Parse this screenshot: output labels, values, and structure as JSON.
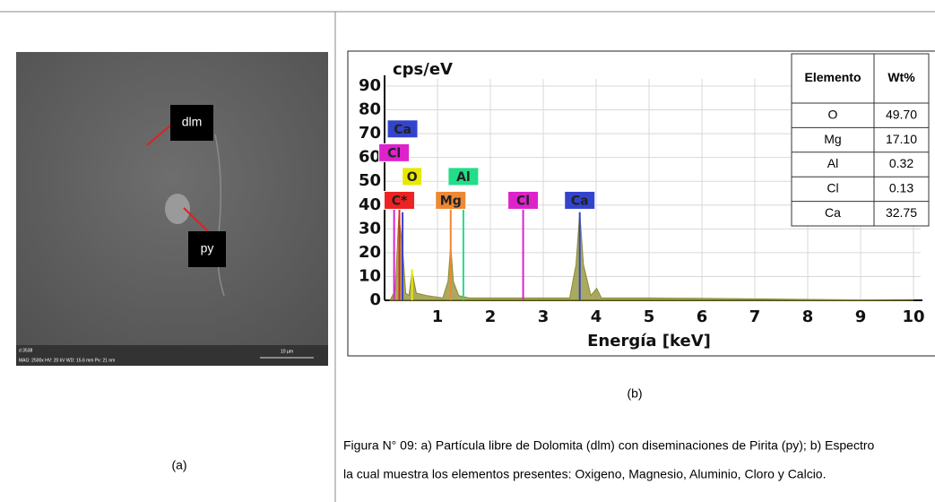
{
  "sem_image": {
    "labels": [
      "dlm",
      "py"
    ],
    "footer": [
      "d 3538",
      "MAG: 2500x  HV: 20 kV  WD: 15.6 mm  Px: 21 nm"
    ],
    "scale": "10 µm"
  },
  "caption_a": "(a)",
  "spectrum": {
    "type": "area",
    "y_label": "cps/eV",
    "x_label": "Energía [keV]",
    "xlim": [
      0,
      10
    ],
    "ylim": [
      0,
      90
    ],
    "xticks": [
      1,
      2,
      3,
      4,
      5,
      6,
      7,
      8,
      9,
      10
    ],
    "yticks": [
      0,
      10,
      20,
      30,
      40,
      50,
      60,
      70,
      80,
      90
    ],
    "grid": true,
    "color": "#8c8c2c",
    "x": [
      0.1,
      0.2,
      0.27,
      0.34,
      0.4,
      0.46,
      0.52,
      0.6,
      0.8,
      1.1,
      1.2,
      1.25,
      1.3,
      1.4,
      1.6,
      2.5,
      3.5,
      3.62,
      3.69,
      3.76,
      3.9,
      4.01,
      4.1,
      5,
      10
    ],
    "values": [
      0,
      4,
      36,
      22,
      3,
      2,
      12,
      3,
      2,
      1,
      8,
      23,
      8,
      2,
      1,
      1,
      1,
      15,
      37,
      15,
      2,
      5,
      1,
      1,
      0
    ],
    "peaks": [
      {
        "element": "Ca",
        "color": "#3344cc",
        "energy": 0.34,
        "height": 37,
        "label_y": 72
      },
      {
        "element": "Cl",
        "color": "#dd22cc",
        "energy": 0.18,
        "height": 45,
        "label_y": 62
      },
      {
        "element": "O",
        "color": "#e8e800",
        "energy": 0.52,
        "height": 13,
        "label_y": 52
      },
      {
        "element": "Al",
        "color": "#22dd88",
        "energy": 1.49,
        "height": 42,
        "label_y": 52
      },
      {
        "element": "C*",
        "color": "#ee2222",
        "energy": 0.28,
        "height": 40,
        "label_y": 42
      },
      {
        "element": "Mg",
        "color": "#ee8833",
        "energy": 1.25,
        "height": 40,
        "label_y": 42
      },
      {
        "element": "Cl",
        "color": "#dd22cc",
        "energy": 2.62,
        "height": 40,
        "label_y": 42
      },
      {
        "element": "Ca",
        "color": "#3344cc",
        "energy": 3.69,
        "height": 37,
        "label_y": 42
      }
    ]
  },
  "table": {
    "header": [
      "Elemento",
      "Wt%"
    ],
    "rows": [
      [
        "O",
        "49.70"
      ],
      [
        "Mg",
        "17.10"
      ],
      [
        "Al",
        "0.32"
      ],
      [
        "Cl",
        "0.13"
      ],
      [
        "Ca",
        "32.75"
      ]
    ]
  },
  "caption_b": "(b)",
  "figure_text": [
    "Figura N° 09: a) Partícula libre de Dolomita (dlm) con diseminaciones de Pirita (py); b) Espectro",
    "la cual muestra los elementos presentes: Oxigeno, Magnesio, Aluminio, Cloro y Calcio."
  ]
}
